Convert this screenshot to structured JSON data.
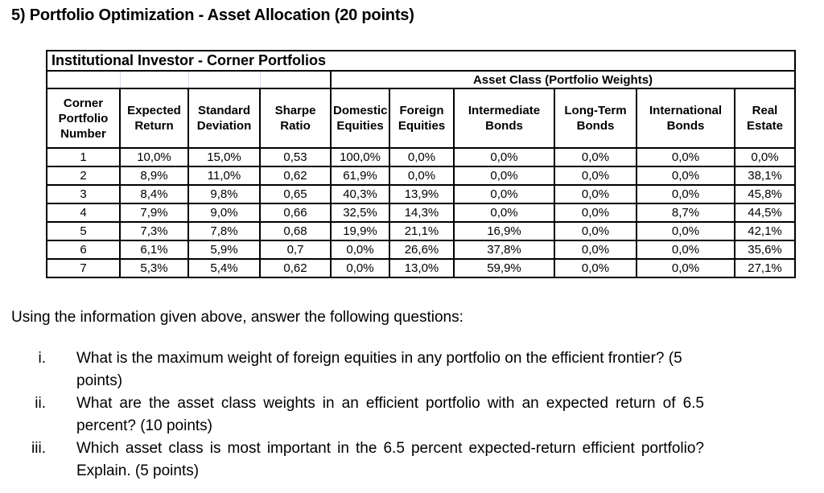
{
  "title": "5) Portfolio Optimization - Asset Allocation (20 points)",
  "table": {
    "title": "Institutional Investor - Corner Portfolios",
    "group_header": "Asset Class (Portfolio Weights)",
    "columns": [
      "Corner Portfolio Number",
      "Expected Return",
      "Standard Deviation",
      "Sharpe Ratio",
      "Domestic Equities",
      "Foreign Equities",
      "Intermediate Bonds",
      "Long-Term Bonds",
      "International Bonds",
      "Real Estate"
    ],
    "rows": [
      [
        "1",
        "10,0%",
        "15,0%",
        "0,53",
        "100,0%",
        "0,0%",
        "0,0%",
        "0,0%",
        "0,0%",
        "0,0%"
      ],
      [
        "2",
        "8,9%",
        "11,0%",
        "0,62",
        "61,9%",
        "0,0%",
        "0,0%",
        "0,0%",
        "0,0%",
        "38,1%"
      ],
      [
        "3",
        "8,4%",
        "9,8%",
        "0,65",
        "40,3%",
        "13,9%",
        "0,0%",
        "0,0%",
        "0,0%",
        "45,8%"
      ],
      [
        "4",
        "7,9%",
        "9,0%",
        "0,66",
        "32,5%",
        "14,3%",
        "0,0%",
        "0,0%",
        "8,7%",
        "44,5%"
      ],
      [
        "5",
        "7,3%",
        "7,8%",
        "0,68",
        "19,9%",
        "21,1%",
        "16,9%",
        "0,0%",
        "0,0%",
        "42,1%"
      ],
      [
        "6",
        "6,1%",
        "5,9%",
        "0,7",
        "0,0%",
        "26,6%",
        "37,8%",
        "0,0%",
        "0,0%",
        "35,6%"
      ],
      [
        "7",
        "5,3%",
        "5,4%",
        "0,62",
        "0,0%",
        "13,0%",
        "59,9%",
        "0,0%",
        "0,0%",
        "27,1%"
      ]
    ]
  },
  "instruction": "Using the information given above, answer the following questions:",
  "questions": [
    {
      "numeral": "i.",
      "text": "What is the maximum weight of foreign equities in any portfolio on the efficient frontier? (5 points)"
    },
    {
      "numeral": "ii.",
      "text": "What are the asset class weights in an efficient portfolio with an expected return of 6.5 percent? (10 points)"
    },
    {
      "numeral": "iii.",
      "text": "Which asset class is most important in the 6.5 percent expected-return efficient portfolio? Explain. (5 points)"
    }
  ]
}
